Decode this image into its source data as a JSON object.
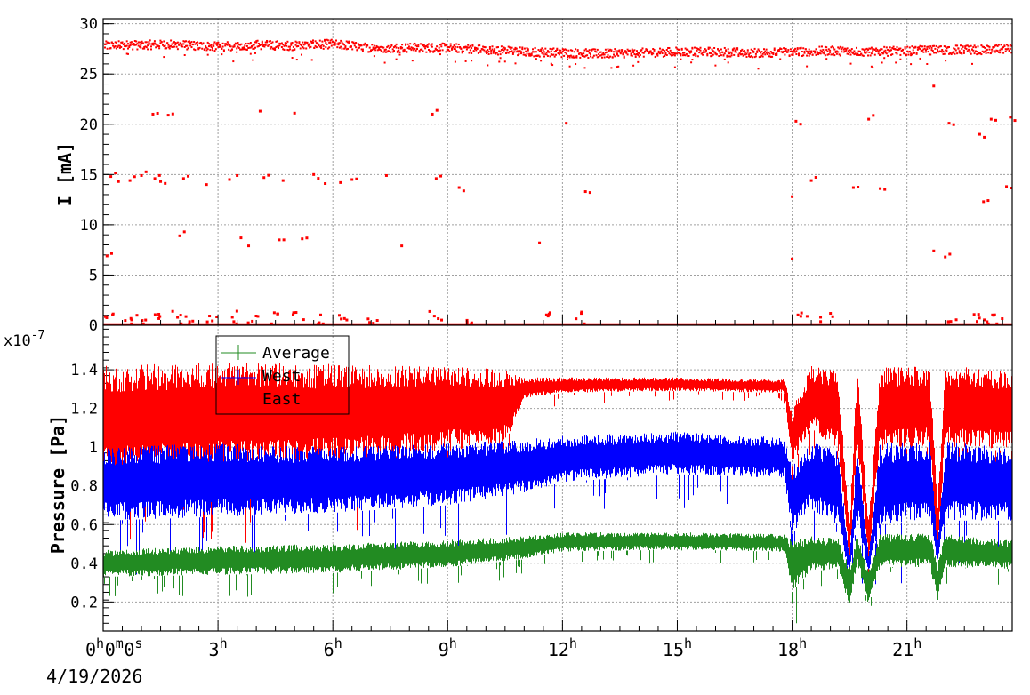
{
  "chart_data": [
    {
      "type": "scatter",
      "ylabel": "I [mA]",
      "ylim": [
        0,
        30.5
      ],
      "yticks": [
        "0",
        "5",
        "10",
        "15",
        "20",
        "25",
        "30"
      ],
      "grid": true,
      "series": [
        {
          "color": "#ff0000",
          "baseline": [
            [
              0,
              27.8
            ],
            [
              1,
              27.9
            ],
            [
              2,
              27.9
            ],
            [
              3,
              27.7
            ],
            [
              4,
              27.9
            ],
            [
              5,
              27.8
            ],
            [
              6,
              28.0
            ],
            [
              7,
              27.6
            ],
            [
              8,
              27.6
            ],
            [
              9,
              27.6
            ],
            [
              10,
              27.4
            ],
            [
              11,
              27.2
            ],
            [
              12,
              27.1
            ],
            [
              13,
              27.0
            ],
            [
              14,
              27.1
            ],
            [
              15,
              27.2
            ],
            [
              16,
              27.2
            ],
            [
              17,
              27.1
            ],
            [
              18,
              27.2
            ],
            [
              19,
              27.3
            ],
            [
              20,
              27.2
            ],
            [
              21,
              27.3
            ],
            [
              22,
              27.4
            ],
            [
              23,
              27.4
            ],
            [
              23.7,
              27.5
            ]
          ],
          "outliers": [
            [
              0.1,
              6.9
            ],
            [
              0.2,
              14.8
            ],
            [
              0.4,
              14.3
            ],
            [
              0.7,
              14.4
            ],
            [
              1.0,
              14.9
            ],
            [
              1.3,
              21.0
            ],
            [
              1.35,
              14.6
            ],
            [
              1.5,
              14.3
            ],
            [
              1.7,
              20.9
            ],
            [
              2.0,
              8.9
            ],
            [
              2.1,
              14.6
            ],
            [
              2.7,
              14.0
            ],
            [
              3.3,
              14.5
            ],
            [
              3.5,
              14.9
            ],
            [
              3.6,
              8.7
            ],
            [
              3.8,
              7.9
            ],
            [
              4.1,
              21.3
            ],
            [
              4.2,
              14.7
            ],
            [
              4.6,
              8.5
            ],
            [
              4.7,
              14.4
            ],
            [
              5.0,
              21.1
            ],
            [
              5.2,
              8.6
            ],
            [
              5.5,
              15.0
            ],
            [
              5.8,
              14.1
            ],
            [
              6.2,
              14.2
            ],
            [
              6.5,
              14.5
            ],
            [
              7.4,
              14.9
            ],
            [
              7.8,
              7.9
            ],
            [
              8.6,
              21.0
            ],
            [
              8.7,
              14.6
            ],
            [
              9.3,
              13.7
            ],
            [
              11.4,
              8.2
            ],
            [
              12.1,
              20.1
            ],
            [
              12.6,
              13.3
            ],
            [
              18.0,
              6.6
            ],
            [
              18.1,
              20.3
            ],
            [
              18.0,
              12.8
            ],
            [
              18.5,
              14.4
            ],
            [
              19.6,
              13.7
            ],
            [
              20.0,
              20.5
            ],
            [
              20.3,
              13.6
            ],
            [
              21.7,
              23.8
            ],
            [
              21.7,
              7.4
            ],
            [
              22.0,
              6.8
            ],
            [
              22.1,
              20.1
            ],
            [
              22.9,
              19.0
            ],
            [
              23.0,
              12.3
            ],
            [
              23.2,
              20.5
            ],
            [
              23.6,
              13.8
            ],
            [
              23.7,
              20.7
            ]
          ],
          "low_points": [
            [
              0.2,
              1.0
            ],
            [
              0.6,
              0.7
            ],
            [
              1.0,
              0.9
            ],
            [
              1.5,
              1.1
            ],
            [
              1.9,
              1.3
            ],
            [
              2.3,
              0.9
            ],
            [
              2.8,
              0.8
            ],
            [
              3.4,
              1.2
            ],
            [
              3.9,
              0.9
            ],
            [
              4.4,
              1.1
            ],
            [
              5.1,
              1.8
            ],
            [
              5.6,
              0.9
            ],
            [
              6.3,
              1.2
            ],
            [
              7.0,
              0.6
            ],
            [
              8.7,
              1.2
            ],
            [
              9.5,
              1.0
            ],
            [
              11.6,
              1.1
            ],
            [
              12.5,
              1.2
            ],
            [
              18.3,
              1.1
            ],
            [
              18.9,
              1.0
            ],
            [
              22.2,
              0.8
            ],
            [
              22.8,
              1.9
            ],
            [
              23.1,
              1.6
            ],
            [
              23.4,
              0.9
            ]
          ]
        }
      ]
    },
    {
      "type": "line",
      "ylabel": "Pressure [Pa]",
      "exponent_label": "x10",
      "exponent_power": "-7",
      "ylim": [
        0.05,
        1.63
      ],
      "yticks": [
        "0.2",
        "0.4",
        "0.6",
        "0.8",
        "1",
        "1.2",
        "1.4"
      ],
      "grid": true,
      "legend_position": "top-left",
      "series": [
        {
          "name": "Average",
          "color": "#228b22",
          "low": [
            [
              0,
              0.33
            ],
            [
              3,
              0.34
            ],
            [
              6,
              0.35
            ],
            [
              9,
              0.38
            ],
            [
              11,
              0.42
            ],
            [
              12,
              0.46
            ],
            [
              15,
              0.47
            ],
            [
              17.8,
              0.46
            ],
            [
              18.0,
              0.25
            ],
            [
              18.5,
              0.36
            ],
            [
              19.2,
              0.37
            ],
            [
              19.5,
              0.18
            ],
            [
              19.7,
              0.4
            ],
            [
              20.0,
              0.18
            ],
            [
              20.3,
              0.38
            ],
            [
              21.6,
              0.38
            ],
            [
              21.8,
              0.2
            ],
            [
              22.0,
              0.38
            ],
            [
              23.7,
              0.37
            ]
          ],
          "high": [
            [
              0,
              0.47
            ],
            [
              3,
              0.49
            ],
            [
              6,
              0.5
            ],
            [
              9,
              0.52
            ],
            [
              11,
              0.54
            ],
            [
              12,
              0.56
            ],
            [
              15,
              0.56
            ],
            [
              17.8,
              0.55
            ],
            [
              18.0,
              0.52
            ],
            [
              18.5,
              0.54
            ],
            [
              19.2,
              0.53
            ],
            [
              19.5,
              0.38
            ],
            [
              19.7,
              0.55
            ],
            [
              20.0,
              0.36
            ],
            [
              20.3,
              0.55
            ],
            [
              21.6,
              0.56
            ],
            [
              21.8,
              0.4
            ],
            [
              22.0,
              0.55
            ],
            [
              23.7,
              0.52
            ]
          ]
        },
        {
          "name": "West",
          "color": "#0000ff",
          "low": [
            [
              0,
              0.62
            ],
            [
              3,
              0.64
            ],
            [
              6,
              0.66
            ],
            [
              9,
              0.7
            ],
            [
              11,
              0.76
            ],
            [
              12,
              0.82
            ],
            [
              15,
              0.86
            ],
            [
              17.8,
              0.84
            ],
            [
              18.0,
              0.55
            ],
            [
              18.5,
              0.68
            ],
            [
              19.2,
              0.6
            ],
            [
              19.5,
              0.33
            ],
            [
              19.7,
              0.62
            ],
            [
              20.0,
              0.35
            ],
            [
              20.3,
              0.6
            ],
            [
              21.6,
              0.62
            ],
            [
              21.8,
              0.4
            ],
            [
              22.0,
              0.62
            ],
            [
              23.7,
              0.62
            ]
          ],
          "high": [
            [
              0,
              1.0
            ],
            [
              3,
              1.02
            ],
            [
              6,
              1.0
            ],
            [
              9,
              1.02
            ],
            [
              11,
              1.04
            ],
            [
              12,
              1.06
            ],
            [
              15,
              1.08
            ],
            [
              17.8,
              1.05
            ],
            [
              18.0,
              0.9
            ],
            [
              18.5,
              1.02
            ],
            [
              19.2,
              1.0
            ],
            [
              19.5,
              0.42
            ],
            [
              19.7,
              1.02
            ],
            [
              20.0,
              0.44
            ],
            [
              20.3,
              1.02
            ],
            [
              21.6,
              1.03
            ],
            [
              21.8,
              0.5
            ],
            [
              22.0,
              1.03
            ],
            [
              23.7,
              1.0
            ]
          ]
        },
        {
          "name": "East",
          "color": "#ff0000",
          "low": [
            [
              0,
              0.86
            ],
            [
              3,
              0.9
            ],
            [
              6,
              0.92
            ],
            [
              9,
              0.98
            ],
            [
              10.5,
              1.02
            ],
            [
              11,
              1.25
            ],
            [
              12,
              1.28
            ],
            [
              15,
              1.29
            ],
            [
              17.8,
              1.28
            ],
            [
              18.0,
              0.9
            ],
            [
              18.5,
              1.1
            ],
            [
              19.2,
              0.98
            ],
            [
              19.5,
              0.4
            ],
            [
              19.7,
              1.0
            ],
            [
              20.0,
              0.42
            ],
            [
              20.3,
              0.98
            ],
            [
              21.6,
              1.0
            ],
            [
              21.8,
              0.45
            ],
            [
              22.0,
              1.0
            ],
            [
              23.7,
              0.98
            ]
          ],
          "high": [
            [
              0,
              1.42
            ],
            [
              3,
              1.44
            ],
            [
              6,
              1.43
            ],
            [
              9,
              1.42
            ],
            [
              10.5,
              1.4
            ],
            [
              11,
              1.36
            ],
            [
              12,
              1.36
            ],
            [
              15,
              1.36
            ],
            [
              17.8,
              1.35
            ],
            [
              18.0,
              1.2
            ],
            [
              18.5,
              1.42
            ],
            [
              19.2,
              1.4
            ],
            [
              19.5,
              0.6
            ],
            [
              19.7,
              1.42
            ],
            [
              20.0,
              0.62
            ],
            [
              20.3,
              1.42
            ],
            [
              21.6,
              1.42
            ],
            [
              21.8,
              0.7
            ],
            [
              22.0,
              1.42
            ],
            [
              23.7,
              1.4
            ]
          ]
        }
      ]
    }
  ],
  "x_axis": {
    "range_hours": [
      0,
      23.75
    ],
    "ticks": [
      {
        "hour": 0,
        "label": "0",
        "sup": "h",
        "parts": [
          [
            "0",
            "h"
          ],
          [
            "0",
            "m"
          ],
          [
            "0",
            "s"
          ]
        ]
      },
      {
        "hour": 3,
        "label": "3",
        "sup": "h"
      },
      {
        "hour": 6,
        "label": "6",
        "sup": "h"
      },
      {
        "hour": 9,
        "label": "9",
        "sup": "h"
      },
      {
        "hour": 12,
        "label": "12",
        "sup": "h"
      },
      {
        "hour": 15,
        "label": "15",
        "sup": "h"
      },
      {
        "hour": 18,
        "label": "18",
        "sup": "h"
      },
      {
        "hour": 21,
        "label": "21",
        "sup": "h"
      }
    ],
    "date_label": "4/19/2026"
  }
}
